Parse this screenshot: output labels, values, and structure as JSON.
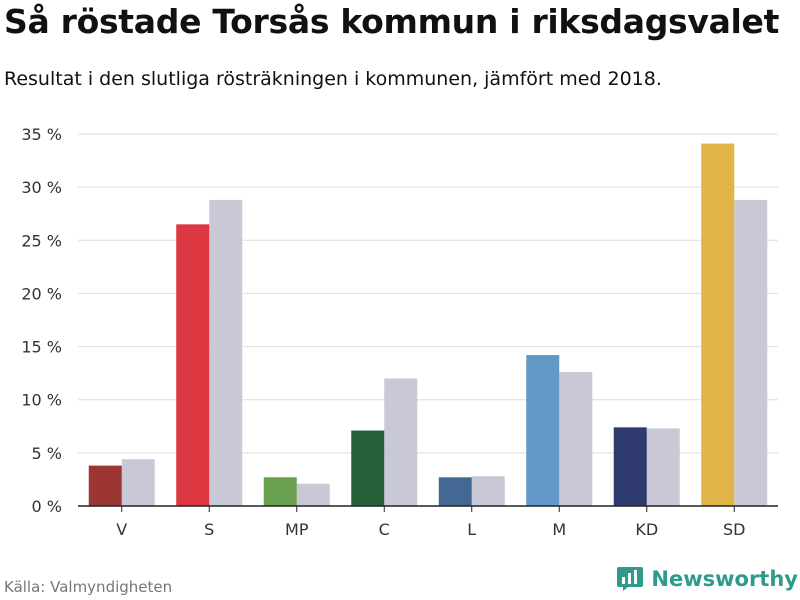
{
  "header": {
    "title": "Så röstade Torsås kommun i riksdagsvalet",
    "subtitle": "Resultat i den slutliga rösträkningen i kommunen, jämfört med 2018."
  },
  "footer": {
    "source": "Källa: Valmyndigheten",
    "brand": "Newsworthy",
    "brand_icon": "bar-chart-logo-icon",
    "brand_color": "#2f9b8b"
  },
  "chart_data": {
    "type": "bar",
    "categories": [
      "V",
      "S",
      "MP",
      "C",
      "L",
      "M",
      "KD",
      "SD"
    ],
    "series": [
      {
        "values": [
          3.8,
          26.5,
          2.7,
          7.1,
          2.7,
          14.2,
          7.4,
          34.1
        ],
        "colors": [
          "#9b3632",
          "#dc3640",
          "#68a04f",
          "#26613a",
          "#436893",
          "#6298c8",
          "#2f3a6f",
          "#e0b446"
        ]
      },
      {
        "values": [
          4.4,
          28.8,
          2.1,
          12.0,
          2.8,
          12.6,
          7.3,
          28.8
        ],
        "color": "#c8c8d6"
      }
    ],
    "yticks": [
      "0 %",
      "5 %",
      "10 %",
      "15 %",
      "20 %",
      "25 %",
      "30 %",
      "35 %"
    ],
    "ylim": [
      0,
      35
    ],
    "grid": true,
    "xlabel": "",
    "ylabel": ""
  }
}
